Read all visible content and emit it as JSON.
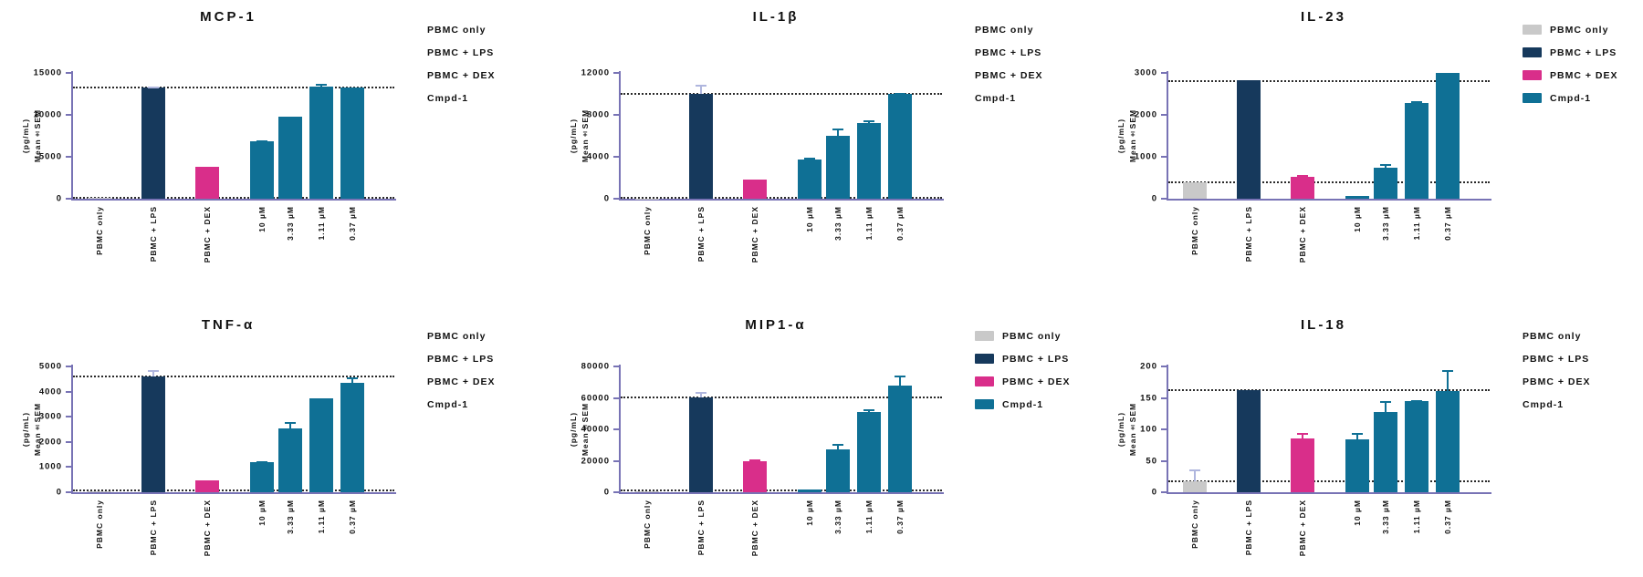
{
  "page": {
    "background": "#ffffff"
  },
  "colors": {
    "pbmc_only": "#C9C9C9",
    "pbmc_lps": "#16395C",
    "pbmc_dex": "#D92E8A",
    "cmpd1": "#0F7095",
    "axis": "#7873B5",
    "ref_line": "#2A2A2A",
    "err_light": "#AFB6DE",
    "text": "#111111"
  },
  "ylabel": {
    "line1": "(pg/mL)",
    "line2": "Mean±SEM"
  },
  "legend_entries": [
    "PBMC only",
    "PBMC + LPS",
    "PBMC + DEX",
    "Cmpd-1"
  ],
  "legend_color_keys": [
    "pbmc_only",
    "pbmc_lps",
    "pbmc_dex",
    "cmpd1"
  ],
  "bar_color_keys": [
    "pbmc_only",
    "pbmc_lps",
    "pbmc_dex",
    "cmpd1",
    "cmpd1",
    "cmpd1",
    "cmpd1"
  ],
  "chart_data": [
    {
      "type": "bar",
      "title": "MCP-1",
      "ylabel": "(pg/mL) Mean±SEM",
      "categories": [
        "PBMC only",
        "PBMC + LPS",
        "PBMC + DEX",
        "10 µM",
        "3.33 µM",
        "1.11 µM",
        "0.37 µM"
      ],
      "values": [
        60,
        13300,
        3800,
        6800,
        9800,
        13400,
        13300
      ],
      "errors": [
        0,
        120,
        100,
        150,
        80,
        250,
        100
      ],
      "ylim": [
        0,
        15000
      ],
      "yticks": [
        0,
        5000,
        10000,
        15000
      ],
      "ref_lines": [
        13300,
        120
      ],
      "legend_swatches": false,
      "legend_position": "top-right",
      "grid": false
    },
    {
      "type": "bar",
      "title": "IL-1β",
      "ylabel": "(pg/mL) Mean±SEM",
      "categories": [
        "PBMC only",
        "PBMC + LPS",
        "PBMC + DEX",
        "10 µM",
        "3.33 µM",
        "1.11 µM",
        "0.37 µM"
      ],
      "values": [
        30,
        10000,
        1800,
        3700,
        6000,
        7200,
        10000
      ],
      "errors": [
        0,
        850,
        60,
        250,
        700,
        300,
        120
      ],
      "ylim": [
        0,
        12000
      ],
      "yticks": [
        0,
        4000,
        8000,
        12000
      ],
      "ref_lines": [
        10000,
        60
      ],
      "legend_swatches": false,
      "legend_position": "top-right",
      "grid": false
    },
    {
      "type": "bar",
      "title": "IL-23",
      "ylabel": "(pg/mL) Mean±SEM",
      "categories": [
        "PBMC only",
        "PBMC + LPS",
        "PBMC + DEX",
        "10 µM",
        "3.33 µM",
        "1.11 µM",
        "0.37 µM"
      ],
      "values": [
        390,
        2820,
        530,
        60,
        730,
        2280,
        3000
      ],
      "errors": [
        15,
        20,
        45,
        10,
        90,
        40,
        0
      ],
      "ylim": [
        0,
        3000
      ],
      "yticks": [
        0,
        1000,
        2000,
        3000
      ],
      "ref_lines": [
        2800,
        390
      ],
      "legend_swatches": true,
      "legend_position": "top-right",
      "grid": false
    },
    {
      "type": "bar",
      "title": "TNF-α",
      "ylabel": "(pg/mL) Mean±SEM",
      "categories": [
        "PBMC only",
        "PBMC + LPS",
        "PBMC + DEX",
        "10 µM",
        "3.33 µM",
        "1.11 µM",
        "0.37 µM"
      ],
      "values": [
        20,
        4600,
        480,
        1180,
        2520,
        3720,
        4350
      ],
      "errors": [
        0,
        250,
        15,
        60,
        280,
        20,
        230
      ],
      "ylim": [
        0,
        5000
      ],
      "yticks": [
        0,
        1000,
        2000,
        3000,
        4000,
        5000
      ],
      "ref_lines": [
        4600,
        60
      ],
      "legend_swatches": false,
      "legend_position": "top-right",
      "grid": false
    },
    {
      "type": "bar",
      "title": "MIP1-α",
      "ylabel": "(pg/mL) Mean±SEM",
      "categories": [
        "PBMC only",
        "PBMC + LPS",
        "PBMC + DEX",
        "10 µM",
        "3.33 µM",
        "1.11 µM",
        "0.37 µM"
      ],
      "values": [
        300,
        60500,
        20000,
        1500,
        27000,
        51000,
        68000
      ],
      "errors": [
        0,
        3000,
        800,
        300,
        4000,
        1500,
        6000
      ],
      "ylim": [
        0,
        80000
      ],
      "yticks": [
        0,
        20000,
        40000,
        60000,
        80000
      ],
      "ref_lines": [
        60500,
        1000
      ],
      "legend_swatches": true,
      "legend_position": "top-right",
      "grid": false
    },
    {
      "type": "bar",
      "title": "IL-18",
      "ylabel": "(pg/mL) Mean±SEM",
      "categories": [
        "PBMC only",
        "PBMC + LPS",
        "PBMC + DEX",
        "10 µM",
        "3.33 µM",
        "1.11 µM",
        "0.37 µM"
      ],
      "values": [
        18,
        162,
        85,
        84,
        128,
        145,
        161
      ],
      "errors": [
        18,
        0,
        9,
        10,
        17,
        2,
        33
      ],
      "ylim": [
        0,
        200
      ],
      "yticks": [
        0,
        50,
        100,
        150,
        200
      ],
      "ref_lines": [
        162,
        18
      ],
      "legend_swatches": false,
      "legend_position": "top-right",
      "grid": false
    }
  ]
}
